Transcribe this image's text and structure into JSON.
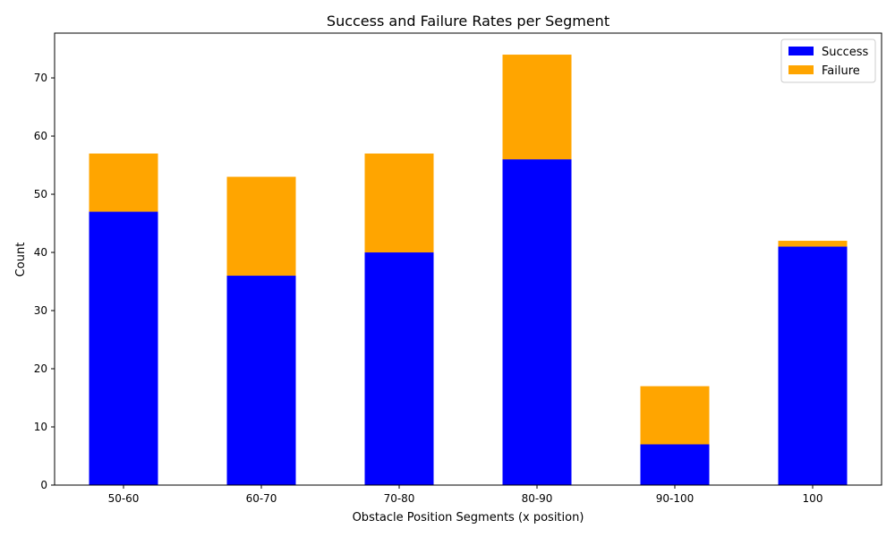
{
  "chart_data": {
    "type": "bar",
    "stacked": true,
    "title": "Success and Failure Rates per Segment",
    "xlabel": "Obstacle Position Segments (x position)",
    "ylabel": "Count",
    "categories": [
      "50-60",
      "60-70",
      "70-80",
      "80-90",
      "90-100",
      "100"
    ],
    "series": [
      {
        "name": "Success",
        "values": [
          47,
          36,
          40,
          56,
          7,
          41
        ],
        "color": "#0000ff"
      },
      {
        "name": "Failure",
        "values": [
          10,
          17,
          17,
          18,
          10,
          1
        ],
        "color": "#ffa500"
      }
    ],
    "ylim": [
      0,
      77.7
    ],
    "yticks": [
      0,
      10,
      20,
      30,
      40,
      50,
      60,
      70
    ],
    "grid": false,
    "legend_position": "top-right"
  }
}
